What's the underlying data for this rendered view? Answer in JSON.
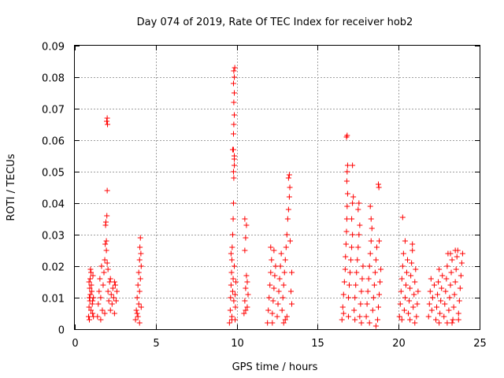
{
  "chart_data": {
    "type": "scatter",
    "title": "Day 074 of 2019, Rate Of TEC Index for receiver hob2",
    "xlabel": "GPS time / hours",
    "ylabel": "ROTI / TECUs",
    "xlim": [
      0,
      25
    ],
    "ylim": [
      0,
      0.09
    ],
    "grid": true,
    "marker": "+",
    "color": "#ff0000",
    "x_ticks": [
      "0",
      "5",
      "10",
      "15",
      "20",
      "25"
    ],
    "y_ticks": [
      "0",
      "0.01",
      "0.02",
      "0.03",
      "0.04",
      "0.05",
      "0.06",
      "0.07",
      "0.08",
      "0.09"
    ],
    "series": [
      {
        "name": "ROTI",
        "points": [
          [
            0.85,
            0.004
          ],
          [
            0.88,
            0.007
          ],
          [
            0.9,
            0.01
          ],
          [
            0.92,
            0.013
          ],
          [
            0.95,
            0.016
          ],
          [
            0.97,
            0.019
          ],
          [
            0.9,
            0.003
          ],
          [
            0.93,
            0.009
          ],
          [
            0.96,
            0.011
          ],
          [
            1.0,
            0.006
          ],
          [
            1.02,
            0.014
          ],
          [
            1.05,
            0.012
          ],
          [
            1.08,
            0.008
          ],
          [
            1.1,
            0.005
          ],
          [
            1.12,
            0.017
          ],
          [
            1.15,
            0.01
          ],
          [
            0.88,
            0.015
          ],
          [
            1.0,
            0.018
          ],
          [
            1.1,
            0.009
          ],
          [
            1.15,
            0.004
          ],
          [
            1.4,
            0.004
          ],
          [
            1.45,
            0.008
          ],
          [
            1.5,
            0.012
          ],
          [
            1.55,
            0.016
          ],
          [
            1.6,
            0.01
          ],
          [
            1.65,
            0.02
          ],
          [
            1.7,
            0.006
          ],
          [
            1.75,
            0.014
          ],
          [
            1.8,
            0.018
          ],
          [
            1.85,
            0.022
          ],
          [
            1.88,
            0.027
          ],
          [
            1.9,
            0.033
          ],
          [
            1.92,
            0.034
          ],
          [
            1.95,
            0.028
          ],
          [
            1.98,
            0.036
          ],
          [
            2.0,
            0.044
          ],
          [
            1.97,
            0.066
          ],
          [
            2.0,
            0.067
          ],
          [
            2.02,
            0.065
          ],
          [
            2.05,
            0.012
          ],
          [
            2.1,
            0.009
          ],
          [
            2.15,
            0.015
          ],
          [
            2.2,
            0.006
          ],
          [
            2.25,
            0.011
          ],
          [
            2.3,
            0.008
          ],
          [
            2.35,
            0.013
          ],
          [
            2.4,
            0.01
          ],
          [
            2.45,
            0.005
          ],
          [
            2.5,
            0.014
          ],
          [
            2.55,
            0.009
          ],
          [
            2.6,
            0.012
          ],
          [
            1.6,
            0.003
          ],
          [
            1.85,
            0.005
          ],
          [
            2.05,
            0.019
          ],
          [
            2.2,
            0.016
          ],
          [
            2.45,
            0.015
          ],
          [
            1.95,
            0.025
          ],
          [
            2.0,
            0.021
          ],
          [
            3.75,
            0.003
          ],
          [
            3.8,
            0.006
          ],
          [
            3.85,
            0.01
          ],
          [
            3.9,
            0.014
          ],
          [
            3.95,
            0.018
          ],
          [
            4.0,
            0.022
          ],
          [
            4.02,
            0.026
          ],
          [
            4.05,
            0.029
          ],
          [
            3.9,
            0.004
          ],
          [
            3.95,
            0.008
          ],
          [
            4.0,
            0.012
          ],
          [
            4.05,
            0.016
          ],
          [
            4.1,
            0.02
          ],
          [
            4.1,
            0.007
          ],
          [
            3.85,
            0.005
          ],
          [
            4.08,
            0.024
          ],
          [
            4.0,
            0.002
          ],
          [
            9.55,
            0.002
          ],
          [
            9.6,
            0.006
          ],
          [
            9.62,
            0.01
          ],
          [
            9.65,
            0.014
          ],
          [
            9.68,
            0.018
          ],
          [
            9.7,
            0.022
          ],
          [
            9.72,
            0.026
          ],
          [
            9.75,
            0.03
          ],
          [
            9.78,
            0.035
          ],
          [
            9.8,
            0.04
          ],
          [
            9.82,
            0.048
          ],
          [
            9.85,
            0.052
          ],
          [
            9.75,
            0.057
          ],
          [
            9.8,
            0.057
          ],
          [
            9.85,
            0.055
          ],
          [
            9.8,
            0.062
          ],
          [
            9.82,
            0.065
          ],
          [
            9.85,
            0.068
          ],
          [
            9.82,
            0.072
          ],
          [
            9.85,
            0.075
          ],
          [
            9.8,
            0.078
          ],
          [
            9.85,
            0.08
          ],
          [
            9.82,
            0.082
          ],
          [
            9.88,
            0.083
          ],
          [
            9.8,
            0.05
          ],
          [
            9.85,
            0.054
          ],
          [
            9.7,
            0.004
          ],
          [
            9.75,
            0.012
          ],
          [
            9.78,
            0.016
          ],
          [
            9.82,
            0.009
          ],
          [
            9.85,
            0.02
          ],
          [
            9.9,
            0.011
          ],
          [
            9.92,
            0.007
          ],
          [
            9.95,
            0.015
          ],
          [
            9.65,
            0.024
          ],
          [
            9.7,
            0.003
          ],
          [
            9.9,
            0.003
          ],
          [
            10.45,
            0.005
          ],
          [
            10.5,
            0.009
          ],
          [
            10.55,
            0.013
          ],
          [
            10.6,
            0.017
          ],
          [
            10.5,
            0.025
          ],
          [
            10.55,
            0.029
          ],
          [
            10.5,
            0.035
          ],
          [
            10.6,
            0.033
          ],
          [
            10.65,
            0.007
          ],
          [
            10.7,
            0.011
          ],
          [
            10.65,
            0.015
          ],
          [
            10.55,
            0.006
          ],
          [
            11.9,
            0.002
          ],
          [
            11.95,
            0.006
          ],
          [
            12.0,
            0.01
          ],
          [
            12.05,
            0.014
          ],
          [
            12.1,
            0.018
          ],
          [
            12.15,
            0.022
          ],
          [
            12.2,
            0.005
          ],
          [
            12.25,
            0.009
          ],
          [
            12.3,
            0.013
          ],
          [
            12.35,
            0.017
          ],
          [
            12.4,
            0.02
          ],
          [
            12.1,
            0.026
          ],
          [
            12.3,
            0.025
          ],
          [
            12.5,
            0.004
          ],
          [
            12.55,
            0.008
          ],
          [
            12.6,
            0.012
          ],
          [
            12.65,
            0.016
          ],
          [
            12.7,
            0.02
          ],
          [
            12.75,
            0.024
          ],
          [
            12.8,
            0.006
          ],
          [
            12.85,
            0.01
          ],
          [
            12.9,
            0.014
          ],
          [
            12.95,
            0.018
          ],
          [
            13.0,
            0.022
          ],
          [
            13.05,
            0.026
          ],
          [
            13.1,
            0.03
          ],
          [
            13.15,
            0.035
          ],
          [
            13.2,
            0.038
          ],
          [
            13.25,
            0.042
          ],
          [
            13.28,
            0.045
          ],
          [
            13.2,
            0.048
          ],
          [
            13.25,
            0.049
          ],
          [
            13.3,
            0.028
          ],
          [
            13.35,
            0.012
          ],
          [
            13.4,
            0.008
          ],
          [
            13.4,
            0.018
          ],
          [
            13.0,
            0.003
          ],
          [
            13.1,
            0.004
          ],
          [
            12.2,
            0.002
          ],
          [
            12.9,
            0.002
          ],
          [
            16.5,
            0.003
          ],
          [
            16.55,
            0.007
          ],
          [
            16.6,
            0.011
          ],
          [
            16.65,
            0.015
          ],
          [
            16.7,
            0.019
          ],
          [
            16.72,
            0.023
          ],
          [
            16.75,
            0.027
          ],
          [
            16.78,
            0.031
          ],
          [
            16.8,
            0.035
          ],
          [
            16.82,
            0.039
          ],
          [
            16.85,
            0.043
          ],
          [
            16.8,
            0.047
          ],
          [
            16.82,
            0.05
          ],
          [
            16.85,
            0.052
          ],
          [
            16.78,
            0.061
          ],
          [
            16.82,
            0.0615
          ],
          [
            16.9,
            0.01
          ],
          [
            16.95,
            0.014
          ],
          [
            17.0,
            0.018
          ],
          [
            17.05,
            0.022
          ],
          [
            17.1,
            0.026
          ],
          [
            17.15,
            0.03
          ],
          [
            17.1,
            0.035
          ],
          [
            17.15,
            0.04
          ],
          [
            17.2,
            0.042
          ],
          [
            17.15,
            0.052
          ],
          [
            17.25,
            0.006
          ],
          [
            17.3,
            0.01
          ],
          [
            17.35,
            0.014
          ],
          [
            17.4,
            0.018
          ],
          [
            17.45,
            0.022
          ],
          [
            17.5,
            0.026
          ],
          [
            17.55,
            0.03
          ],
          [
            17.6,
            0.033
          ],
          [
            17.5,
            0.038
          ],
          [
            17.55,
            0.04
          ],
          [
            17.6,
            0.004
          ],
          [
            17.65,
            0.008
          ],
          [
            17.7,
            0.012
          ],
          [
            17.75,
            0.016
          ],
          [
            17.8,
            0.02
          ],
          [
            16.6,
            0.005
          ],
          [
            16.9,
            0.004
          ],
          [
            17.3,
            0.003
          ],
          [
            17.7,
            0.002
          ],
          [
            18.0,
            0.004
          ],
          [
            18.05,
            0.008
          ],
          [
            18.1,
            0.012
          ],
          [
            18.15,
            0.016
          ],
          [
            18.2,
            0.02
          ],
          [
            18.25,
            0.024
          ],
          [
            18.3,
            0.028
          ],
          [
            18.35,
            0.032
          ],
          [
            18.3,
            0.035
          ],
          [
            18.25,
            0.039
          ],
          [
            18.4,
            0.006
          ],
          [
            18.45,
            0.01
          ],
          [
            18.5,
            0.014
          ],
          [
            18.55,
            0.018
          ],
          [
            18.6,
            0.022
          ],
          [
            18.65,
            0.026
          ],
          [
            18.7,
            0.003
          ],
          [
            18.75,
            0.007
          ],
          [
            18.8,
            0.011
          ],
          [
            18.85,
            0.015
          ],
          [
            18.9,
            0.019
          ],
          [
            18.75,
            0.046
          ],
          [
            18.78,
            0.045
          ],
          [
            18.8,
            0.028
          ],
          [
            18.2,
            0.002
          ],
          [
            18.6,
            0.001
          ],
          [
            20.05,
            0.004
          ],
          [
            20.1,
            0.008
          ],
          [
            20.15,
            0.012
          ],
          [
            20.2,
            0.016
          ],
          [
            20.25,
            0.02
          ],
          [
            20.3,
            0.024
          ],
          [
            20.25,
            0.0355
          ],
          [
            20.35,
            0.006
          ],
          [
            20.4,
            0.01
          ],
          [
            20.45,
            0.014
          ],
          [
            20.5,
            0.018
          ],
          [
            20.4,
            0.028
          ],
          [
            20.55,
            0.022
          ],
          [
            20.6,
            0.005
          ],
          [
            20.65,
            0.009
          ],
          [
            20.7,
            0.013
          ],
          [
            20.75,
            0.017
          ],
          [
            20.8,
            0.021
          ],
          [
            20.85,
            0.025
          ],
          [
            20.85,
            0.027
          ],
          [
            20.9,
            0.007
          ],
          [
            20.95,
            0.011
          ],
          [
            21.0,
            0.015
          ],
          [
            21.05,
            0.019
          ],
          [
            21.1,
            0.004
          ],
          [
            21.15,
            0.008
          ],
          [
            21.2,
            0.012
          ],
          [
            20.2,
            0.003
          ],
          [
            20.7,
            0.003
          ],
          [
            21.0,
            0.002
          ],
          [
            21.85,
            0.004
          ],
          [
            21.9,
            0.008
          ],
          [
            21.95,
            0.012
          ],
          [
            22.0,
            0.016
          ],
          [
            22.05,
            0.006
          ],
          [
            22.1,
            0.01
          ],
          [
            22.2,
            0.014
          ],
          [
            22.3,
            0.003
          ],
          [
            22.35,
            0.007
          ],
          [
            22.4,
            0.011
          ],
          [
            22.45,
            0.015
          ],
          [
            22.5,
            0.019
          ],
          [
            22.55,
            0.005
          ],
          [
            22.6,
            0.009
          ],
          [
            22.65,
            0.013
          ],
          [
            22.7,
            0.017
          ],
          [
            22.8,
            0.004
          ],
          [
            22.85,
            0.008
          ],
          [
            22.9,
            0.012
          ],
          [
            22.95,
            0.016
          ],
          [
            23.0,
            0.02
          ],
          [
            23.05,
            0.024
          ],
          [
            23.1,
            0.006
          ],
          [
            23.15,
            0.01
          ],
          [
            23.2,
            0.014
          ],
          [
            23.25,
            0.018
          ],
          [
            23.3,
            0.022
          ],
          [
            23.35,
            0.003
          ],
          [
            23.4,
            0.007
          ],
          [
            23.45,
            0.011
          ],
          [
            23.5,
            0.015
          ],
          [
            23.55,
            0.019
          ],
          [
            23.6,
            0.023
          ],
          [
            23.65,
            0.025
          ],
          [
            23.7,
            0.005
          ],
          [
            23.75,
            0.009
          ],
          [
            23.8,
            0.013
          ],
          [
            23.85,
            0.017
          ],
          [
            23.9,
            0.021
          ],
          [
            23.95,
            0.024
          ],
          [
            22.5,
            0.002
          ],
          [
            23.0,
            0.002
          ],
          [
            23.3,
            0.002
          ],
          [
            23.7,
            0.003
          ],
          [
            23.2,
            0.024
          ],
          [
            23.5,
            0.025
          ]
        ]
      }
    ]
  }
}
